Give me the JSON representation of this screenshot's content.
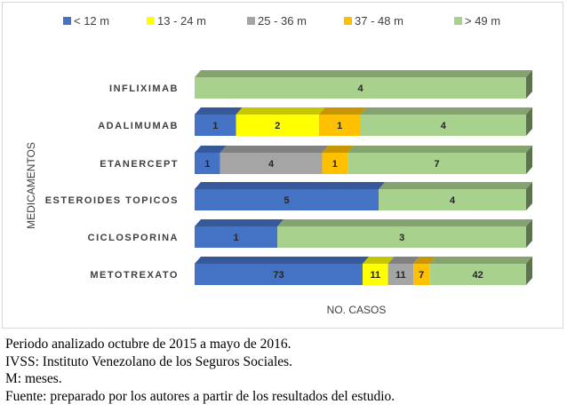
{
  "chart_data": {
    "type": "bar",
    "stacked": true,
    "orientation": "horizontal",
    "three_d": true,
    "ylabel": "MEDICAMENTOS",
    "xlabel": "NO. CASOS",
    "legend_position": "top",
    "categories": [
      "INFLIXIMAB",
      "ADALIMUMAB",
      "ETANERCEPT",
      "ESTEROIDES TOPICOS",
      "CICLOSPORINA",
      "METOTREXATO"
    ],
    "series": [
      {
        "name": "< 12 m",
        "color": "#4472c4",
        "values": [
          0,
          1,
          1,
          5,
          1,
          73
        ]
      },
      {
        "name": "13 - 24 m",
        "color": "#ffff00",
        "values": [
          0,
          2,
          0,
          0,
          0,
          11
        ]
      },
      {
        "name": "25 - 36 m",
        "color": "#a5a5a5",
        "values": [
          0,
          0,
          4,
          0,
          0,
          11
        ]
      },
      {
        "name": "37 - 48 m",
        "color": "#ffc000",
        "values": [
          0,
          1,
          1,
          0,
          0,
          7
        ]
      },
      {
        "name": "> 49 m",
        "color": "#a9d18e",
        "values": [
          4,
          4,
          7,
          4,
          3,
          42
        ]
      }
    ],
    "normalized_percent": true,
    "grid": false
  },
  "notes": [
    "Periodo analizado octubre de 2015 a mayo de 2016.",
    "IVSS: Instituto Venezolano de los Seguros Sociales.",
    "M: meses.",
    "Fuente: preparado por los autores a partir de los resultados del estudio."
  ]
}
